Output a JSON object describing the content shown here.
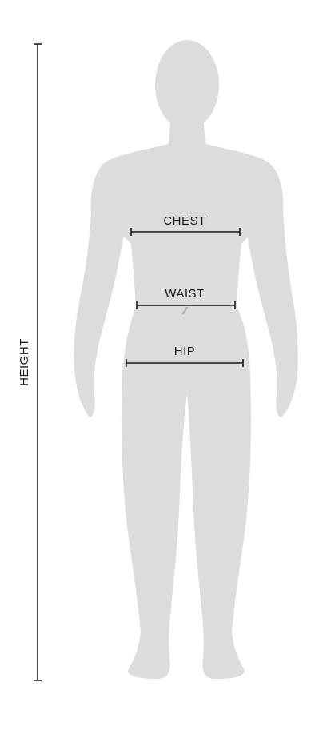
{
  "measurements": {
    "height_label": "HEIGHT",
    "chest_label": "CHEST",
    "waist_label": "WAIST",
    "hip_label": "HIP"
  },
  "colors": {
    "body": "#dcdcdc",
    "line": "#1a1a1a",
    "background": "#ffffff"
  }
}
